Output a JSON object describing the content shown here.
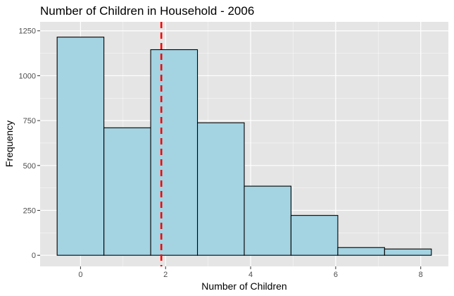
{
  "chart_data": {
    "type": "bar",
    "subtype": "histogram",
    "title": "Number of Children in Household - 2006",
    "xlabel": "Number of Children",
    "ylabel": "Frequency",
    "xlim": [
      -0.95,
      8.65
    ],
    "ylim": [
      -62,
      1300
    ],
    "x_ticks": [
      0,
      2,
      4,
      6,
      8
    ],
    "y_ticks": [
      0,
      250,
      500,
      750,
      1000,
      1250
    ],
    "bin_edges": [
      -0.55,
      0.55,
      1.65,
      2.75,
      3.85,
      4.95,
      6.05,
      7.15,
      8.25
    ],
    "values": [
      1215,
      710,
      1145,
      738,
      385,
      222,
      43,
      35
    ],
    "reference_line": {
      "orientation": "vertical",
      "x": 1.9,
      "style": "dashed",
      "color": "#ff0000"
    },
    "grid": true,
    "colors": {
      "panel": "#e5e5e5",
      "bar_fill": "#a4d3e2",
      "bar_edge": "#000000",
      "grid": "#ffffff"
    }
  }
}
